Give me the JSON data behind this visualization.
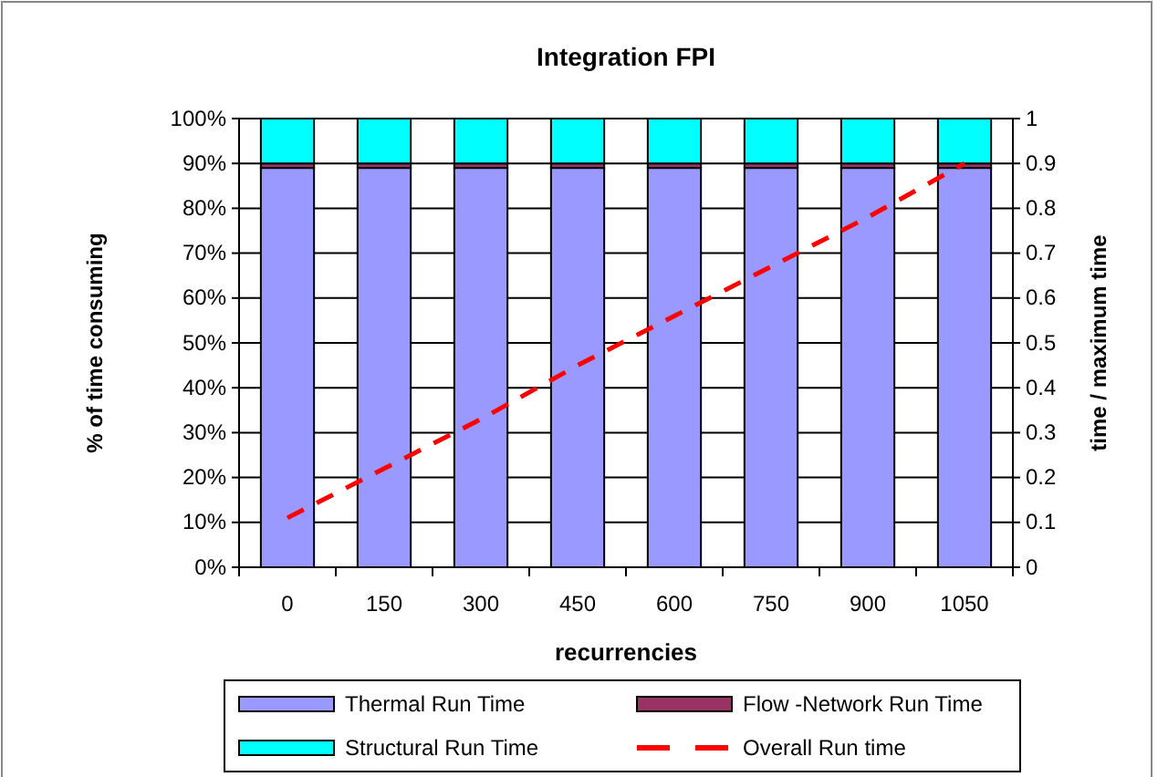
{
  "chart_data": {
    "type": "bar",
    "title": "Integration FPI",
    "xlabel": "recurrencies",
    "ylabel": "% of time consuming",
    "y2label": "time / maximum time",
    "categories": [
      "0",
      "150",
      "300",
      "450",
      "600",
      "750",
      "900",
      "1050"
    ],
    "stacked": true,
    "series": [
      {
        "name": "Thermal Run Time",
        "color": "#9999ff",
        "values": [
          89,
          89,
          89,
          89,
          89,
          89,
          89,
          89
        ]
      },
      {
        "name": "Flow -Network Run Time",
        "color": "#993366",
        "values": [
          1,
          1,
          1,
          1,
          1,
          1,
          1,
          1
        ]
      },
      {
        "name": "Structural Run Time",
        "color": "#00ffff",
        "values": [
          10,
          10,
          10,
          10,
          10,
          10,
          10,
          10
        ]
      },
      {
        "name": "Overall Run time",
        "type": "line",
        "axis": "y2",
        "color": "#ff0000",
        "line_style": "dashed",
        "marker": "none",
        "values": [
          0.11,
          0.22,
          0.33,
          0.45,
          0.56,
          0.67,
          0.78,
          0.9
        ]
      }
    ],
    "ylim": [
      0,
      100
    ],
    "yticks": [
      {
        "value": 0,
        "label": "0%"
      },
      {
        "value": 10,
        "label": "10%"
      },
      {
        "value": 20,
        "label": "20%"
      },
      {
        "value": 30,
        "label": "30%"
      },
      {
        "value": 40,
        "label": "40%"
      },
      {
        "value": 50,
        "label": "50%"
      },
      {
        "value": 60,
        "label": "60%"
      },
      {
        "value": 70,
        "label": "70%"
      },
      {
        "value": 80,
        "label": "80%"
      },
      {
        "value": 90,
        "label": "90%"
      },
      {
        "value": 100,
        "label": "100%"
      }
    ],
    "y2lim": [
      0,
      1
    ],
    "y2ticks": [
      0,
      0.1,
      0.2,
      0.3,
      0.4,
      0.5,
      0.6,
      0.7,
      0.8,
      0.9,
      1
    ],
    "grid": "y",
    "legend": "bottom"
  }
}
